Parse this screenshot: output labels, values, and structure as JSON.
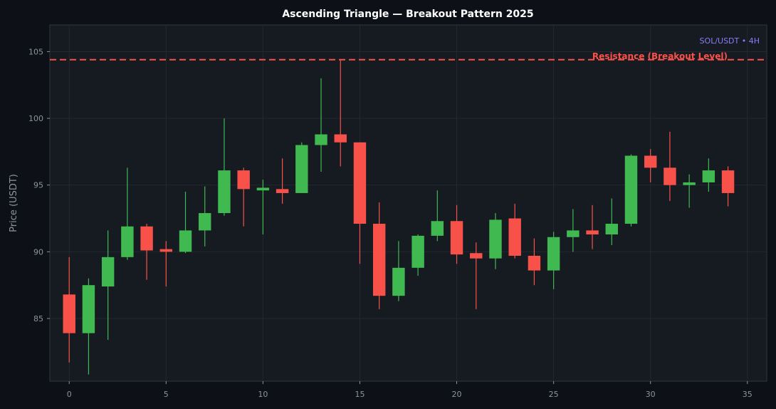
{
  "chart_data": {
    "type": "candlestick",
    "title": "Ascending Triangle — Breakout Pattern 2025",
    "xlabel": "",
    "ylabel": "Price (USDT)",
    "xlim": [
      -1,
      36
    ],
    "ylim": [
      80.3,
      107.0
    ],
    "x_ticks": [
      0,
      5,
      10,
      15,
      20,
      25,
      30,
      35
    ],
    "y_ticks": [
      85,
      90,
      95,
      100,
      105
    ],
    "grid": true,
    "colors": {
      "up": "#3fb950",
      "down": "#f85149",
      "background": "#0d1117",
      "plot_background": "#161b22",
      "resistance": "#f85149",
      "watermark": "#8b7cf6"
    },
    "resistance": {
      "value": 104.4,
      "label": "Resistance (Breakout Level)"
    },
    "watermark": "SOL/USDT • 4H",
    "candles": [
      {
        "x": 0,
        "open": 86.8,
        "high": 89.6,
        "low": 81.7,
        "close": 83.9
      },
      {
        "x": 1,
        "open": 83.9,
        "high": 88.0,
        "low": 80.8,
        "close": 87.5
      },
      {
        "x": 2,
        "open": 87.4,
        "high": 91.6,
        "low": 83.4,
        "close": 89.6
      },
      {
        "x": 3,
        "open": 89.6,
        "high": 96.3,
        "low": 89.4,
        "close": 91.9
      },
      {
        "x": 4,
        "open": 91.9,
        "high": 92.1,
        "low": 87.9,
        "close": 90.1
      },
      {
        "x": 5,
        "open": 90.2,
        "high": 90.8,
        "low": 87.4,
        "close": 90.0
      },
      {
        "x": 6,
        "open": 90.0,
        "high": 94.5,
        "low": 89.9,
        "close": 91.6
      },
      {
        "x": 7,
        "open": 91.6,
        "high": 94.9,
        "low": 90.4,
        "close": 92.9
      },
      {
        "x": 8,
        "open": 92.9,
        "high": 100.0,
        "low": 92.7,
        "close": 96.1
      },
      {
        "x": 9,
        "open": 96.1,
        "high": 96.3,
        "low": 91.9,
        "close": 94.7
      },
      {
        "x": 10,
        "open": 94.6,
        "high": 95.4,
        "low": 91.3,
        "close": 94.8
      },
      {
        "x": 11,
        "open": 94.7,
        "high": 97.0,
        "low": 93.6,
        "close": 94.4
      },
      {
        "x": 12,
        "open": 94.4,
        "high": 98.2,
        "low": 94.4,
        "close": 98.0
      },
      {
        "x": 13,
        "open": 98.0,
        "high": 103.0,
        "low": 96.0,
        "close": 98.8
      },
      {
        "x": 14,
        "open": 98.8,
        "high": 104.4,
        "low": 96.4,
        "close": 98.2
      },
      {
        "x": 15,
        "open": 98.2,
        "high": 98.2,
        "low": 89.1,
        "close": 92.1
      },
      {
        "x": 16,
        "open": 92.1,
        "high": 93.7,
        "low": 85.7,
        "close": 86.7
      },
      {
        "x": 17,
        "open": 86.7,
        "high": 90.8,
        "low": 86.3,
        "close": 88.8
      },
      {
        "x": 18,
        "open": 88.8,
        "high": 91.3,
        "low": 88.2,
        "close": 91.2
      },
      {
        "x": 19,
        "open": 91.2,
        "high": 94.6,
        "low": 90.8,
        "close": 92.3
      },
      {
        "x": 20,
        "open": 92.3,
        "high": 93.5,
        "low": 89.1,
        "close": 89.8
      },
      {
        "x": 21,
        "open": 89.9,
        "high": 90.7,
        "low": 85.7,
        "close": 89.5
      },
      {
        "x": 22,
        "open": 89.5,
        "high": 92.9,
        "low": 88.7,
        "close": 92.4
      },
      {
        "x": 23,
        "open": 92.5,
        "high": 93.6,
        "low": 89.5,
        "close": 89.7
      },
      {
        "x": 24,
        "open": 89.7,
        "high": 91.0,
        "low": 87.5,
        "close": 88.6
      },
      {
        "x": 25,
        "open": 88.6,
        "high": 91.5,
        "low": 87.2,
        "close": 91.1
      },
      {
        "x": 26,
        "open": 91.1,
        "high": 93.2,
        "low": 90.0,
        "close": 91.6
      },
      {
        "x": 27,
        "open": 91.6,
        "high": 93.5,
        "low": 90.2,
        "close": 91.3
      },
      {
        "x": 28,
        "open": 91.3,
        "high": 94.0,
        "low": 90.5,
        "close": 92.1
      },
      {
        "x": 29,
        "open": 92.1,
        "high": 97.3,
        "low": 91.9,
        "close": 97.2
      },
      {
        "x": 30,
        "open": 97.2,
        "high": 97.7,
        "low": 95.2,
        "close": 96.3
      },
      {
        "x": 31,
        "open": 96.3,
        "high": 99.0,
        "low": 93.8,
        "close": 95.0
      },
      {
        "x": 32,
        "open": 95.0,
        "high": 95.8,
        "low": 93.3,
        "close": 95.2
      },
      {
        "x": 33,
        "open": 95.2,
        "high": 97.0,
        "low": 94.5,
        "close": 96.1
      },
      {
        "x": 34,
        "open": 96.1,
        "high": 96.4,
        "low": 93.4,
        "close": 94.4
      }
    ]
  }
}
